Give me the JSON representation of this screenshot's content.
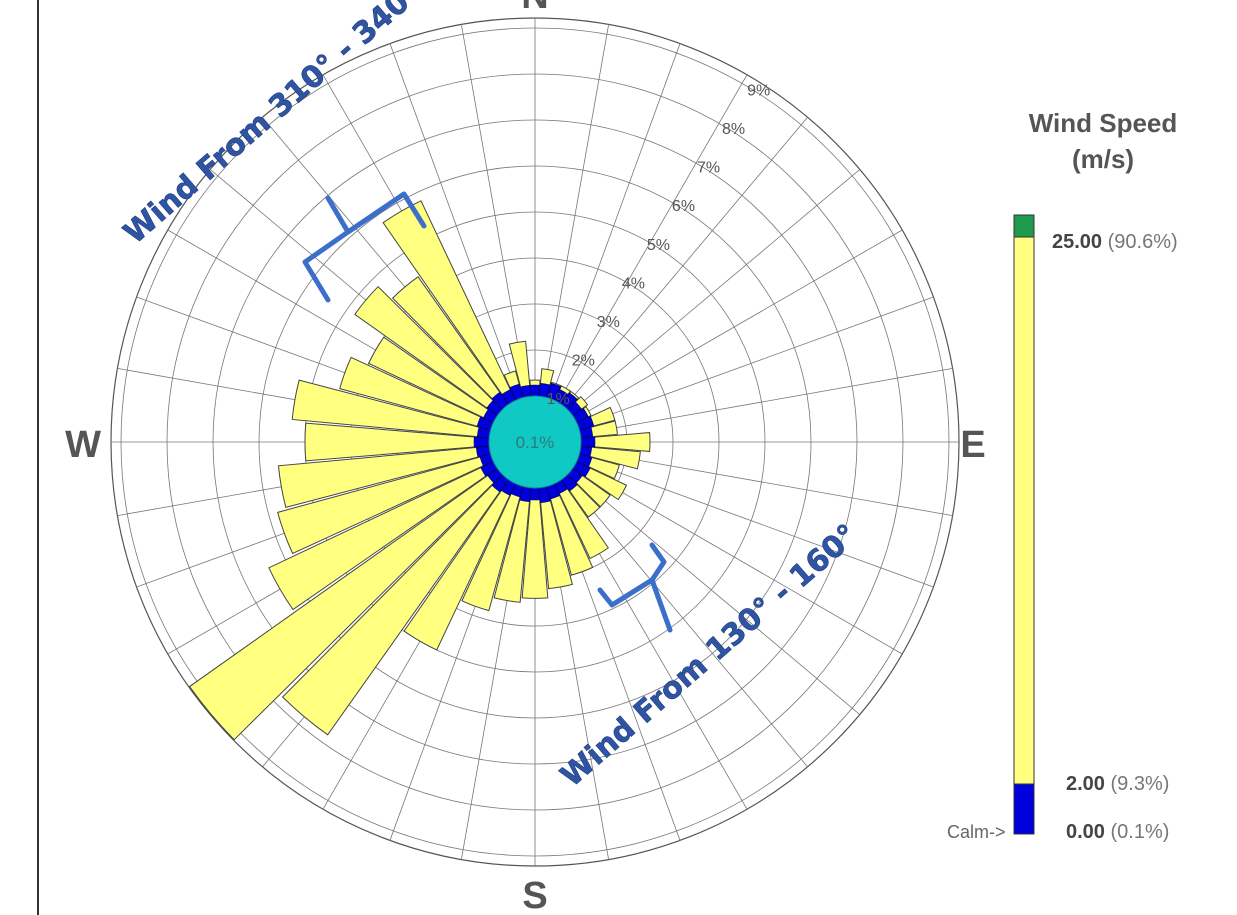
{
  "chart_data": {
    "type": "wind-rose",
    "compass": {
      "north": "N",
      "east": "E",
      "south": "S",
      "west": "W"
    },
    "calm_center_label": "0.1%",
    "radial_unit": "%",
    "radial_rings": [
      1,
      2,
      3,
      4,
      5,
      6,
      7,
      8,
      9
    ],
    "radial_tick_labels": [
      "1%",
      "2%",
      "3%",
      "4%",
      "5%",
      "6%",
      "7%",
      "8%",
      "9%"
    ],
    "sector_width_deg": 10,
    "directions_deg": [
      0,
      10,
      20,
      30,
      40,
      50,
      60,
      70,
      80,
      90,
      100,
      110,
      120,
      130,
      140,
      150,
      160,
      170,
      180,
      190,
      200,
      210,
      220,
      230,
      240,
      250,
      260,
      270,
      280,
      290,
      300,
      310,
      320,
      330,
      340,
      350
    ],
    "frequency_percent": [
      0.6,
      1.6,
      1.2,
      1.0,
      1.2,
      1.4,
      1.0,
      1.8,
      1.8,
      2.5,
      2.3,
      1.9,
      2.2,
      2.0,
      2.0,
      2.8,
      3.0,
      3.2,
      3.4,
      3.5,
      3.8,
      5.0,
      7.8,
      9.2,
      6.4,
      5.8,
      5.6,
      5.0,
      5.3,
      4.4,
      4.0,
      4.8,
      4.4,
      5.8,
      1.6,
      2.2
    ],
    "bins": [
      {
        "label": "0.00",
        "percent": "(0.1%)",
        "color": "#0000dd"
      },
      {
        "label": "2.00",
        "percent": "(9.3%)",
        "color": "#ffff80"
      },
      {
        "label": "25.00",
        "percent": "(90.6%)",
        "color": "#1e9a4e"
      }
    ],
    "calm_arrow_label": "Calm->",
    "legend_title_line1": "Wind Speed",
    "legend_title_line2": "(m/s)",
    "annotations": [
      {
        "text": "Wind From 310° - 340°",
        "range_deg": [
          310,
          340
        ]
      },
      {
        "text": "Wind From 130° - 160°",
        "range_deg": [
          130,
          160
        ]
      }
    ],
    "colors": {
      "calm": "#11c9c4",
      "low_speed": "#0000dd",
      "main_speed": "#ffff80",
      "bracket": "#3b6fc9"
    }
  }
}
